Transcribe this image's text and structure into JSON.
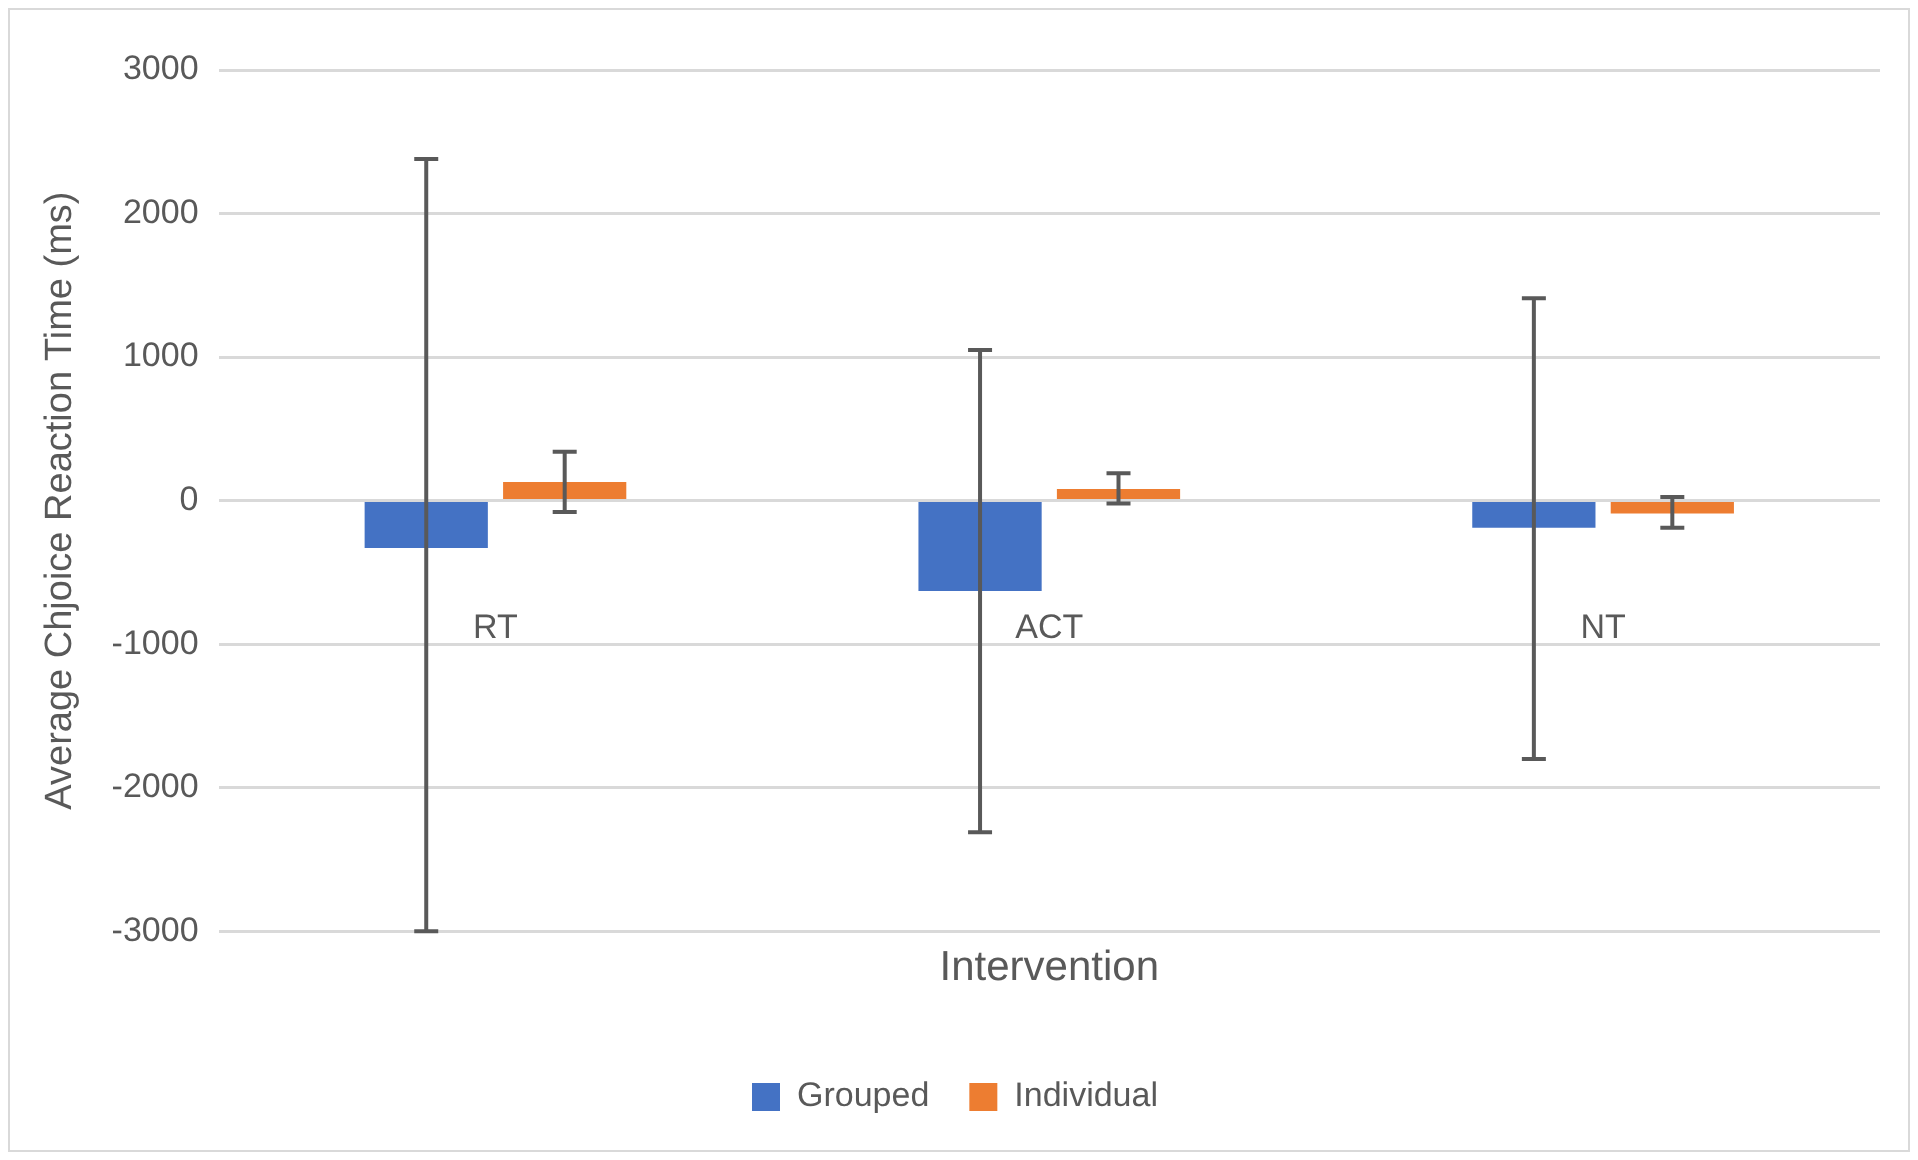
{
  "chart_data": {
    "type": "bar",
    "xlabel": "Intervention",
    "ylabel": "Average Chjoice Reaction Time (ms)",
    "categories": [
      "RT",
      "ACT",
      "NT"
    ],
    "series": [
      {
        "name": "Grouped",
        "color": "#4472c4",
        "values": [
          -330,
          -630,
          -190
        ],
        "errors": [
          [
            -3000,
            2380
          ],
          [
            -2310,
            1050
          ],
          [
            -1800,
            1410
          ]
        ]
      },
      {
        "name": "Individual",
        "color": "#ed7d31",
        "values": [
          130,
          80,
          -90
        ],
        "errors": [
          [
            -80,
            340
          ],
          [
            -20,
            190
          ],
          [
            -190,
            25
          ]
        ]
      }
    ],
    "ylim": [
      -3000,
      3000
    ],
    "yticks": [
      -3000,
      -2000,
      -1000,
      0,
      1000,
      2000,
      3000
    ],
    "grid": "y",
    "legend": "bottom"
  }
}
